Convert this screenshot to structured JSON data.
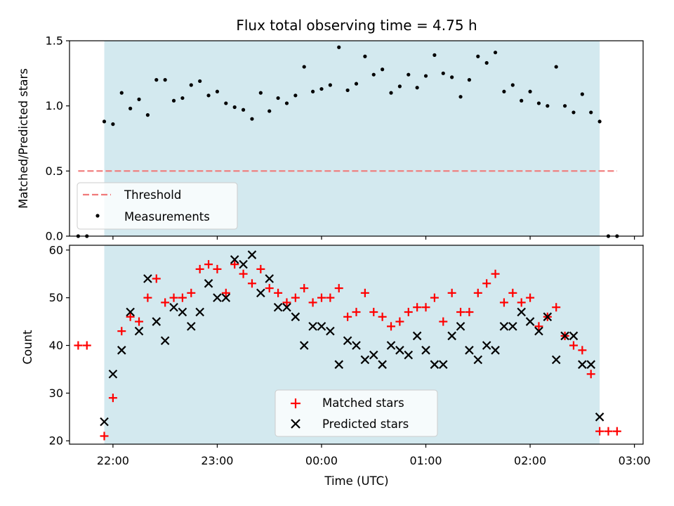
{
  "chart_data": [
    {
      "type": "scatter",
      "title": "Flux total observing time = 4.75 h",
      "ylabel": "Matched/Predicted stars",
      "xlabel": "",
      "ylim": [
        0,
        1.5
      ],
      "yticks": [
        "0.0",
        "0.5",
        "1.0",
        "1.5"
      ],
      "x_domain": [
        "21:35",
        "03:05"
      ],
      "shaded_region": {
        "start": "21:55",
        "end": "02:40",
        "color": "#d3e9ef"
      },
      "threshold": {
        "name": "Threshold",
        "value": 0.5,
        "x_start": "21:40",
        "x_end": "02:50",
        "color": "#f07a7a"
      },
      "series": [
        {
          "name": "Measurements",
          "color": "#000000",
          "points": [
            [
              "21:40",
              0
            ],
            [
              "21:45",
              0
            ],
            [
              "21:55",
              0.88
            ],
            [
              "22:00",
              0.86
            ],
            [
              "22:05",
              1.1
            ],
            [
              "22:10",
              0.98
            ],
            [
              "22:15",
              1.05
            ],
            [
              "22:20",
              0.93
            ],
            [
              "22:25",
              1.2
            ],
            [
              "22:30",
              1.2
            ],
            [
              "22:35",
              1.04
            ],
            [
              "22:40",
              1.06
            ],
            [
              "22:45",
              1.16
            ],
            [
              "22:50",
              1.19
            ],
            [
              "22:55",
              1.08
            ],
            [
              "23:00",
              1.11
            ],
            [
              "23:05",
              1.02
            ],
            [
              "23:10",
              0.99
            ],
            [
              "23:15",
              0.97
            ],
            [
              "23:20",
              0.9
            ],
            [
              "23:25",
              1.1
            ],
            [
              "23:30",
              0.96
            ],
            [
              "23:35",
              1.06
            ],
            [
              "23:40",
              1.02
            ],
            [
              "23:45",
              1.08
            ],
            [
              "23:50",
              1.3
            ],
            [
              "23:55",
              1.11
            ],
            [
              "00:00",
              1.13
            ],
            [
              "00:05",
              1.16
            ],
            [
              "00:10",
              1.45
            ],
            [
              "00:15",
              1.12
            ],
            [
              "00:20",
              1.17
            ],
            [
              "00:25",
              1.38
            ],
            [
              "00:30",
              1.24
            ],
            [
              "00:35",
              1.28
            ],
            [
              "00:40",
              1.1
            ],
            [
              "00:45",
              1.15
            ],
            [
              "00:50",
              1.24
            ],
            [
              "00:55",
              1.14
            ],
            [
              "01:00",
              1.23
            ],
            [
              "01:05",
              1.39
            ],
            [
              "01:10",
              1.25
            ],
            [
              "01:15",
              1.22
            ],
            [
              "01:20",
              1.07
            ],
            [
              "01:25",
              1.2
            ],
            [
              "01:30",
              1.38
            ],
            [
              "01:35",
              1.33
            ],
            [
              "01:40",
              1.41
            ],
            [
              "01:45",
              1.11
            ],
            [
              "01:50",
              1.16
            ],
            [
              "01:55",
              1.04
            ],
            [
              "02:00",
              1.11
            ],
            [
              "02:05",
              1.02
            ],
            [
              "02:10",
              1.0
            ],
            [
              "02:15",
              1.3
            ],
            [
              "02:20",
              1.0
            ],
            [
              "02:25",
              0.95
            ],
            [
              "02:30",
              1.09
            ],
            [
              "02:35",
              0.95
            ],
            [
              "02:40",
              0.88
            ],
            [
              "02:45",
              0
            ],
            [
              "02:50",
              0
            ]
          ]
        }
      ],
      "legend": {
        "position": "lower-left",
        "entries": [
          "Threshold",
          "Measurements"
        ]
      }
    },
    {
      "type": "scatter",
      "title": "",
      "ylabel": "Count",
      "xlabel": "Time (UTC)",
      "ylim": [
        19.3,
        61
      ],
      "yticks": [
        "20",
        "30",
        "40",
        "50",
        "60"
      ],
      "xticks": [
        "22:00",
        "23:00",
        "00:00",
        "01:00",
        "02:00",
        "03:00"
      ],
      "x_domain": [
        "21:35",
        "03:05"
      ],
      "shaded_region": {
        "start": "21:55",
        "end": "02:40",
        "color": "#d3e9ef"
      },
      "series": [
        {
          "name": "Matched stars",
          "marker": "plus",
          "color": "#ff0000",
          "points": [
            [
              "21:40",
              40
            ],
            [
              "21:45",
              40
            ],
            [
              "21:55",
              21
            ],
            [
              "22:00",
              29
            ],
            [
              "22:05",
              43
            ],
            [
              "22:10",
              46
            ],
            [
              "22:15",
              45
            ],
            [
              "22:20",
              50
            ],
            [
              "22:25",
              54
            ],
            [
              "22:30",
              49
            ],
            [
              "22:35",
              50
            ],
            [
              "22:40",
              50
            ],
            [
              "22:45",
              51
            ],
            [
              "22:50",
              56
            ],
            [
              "22:55",
              57
            ],
            [
              "23:00",
              56
            ],
            [
              "23:05",
              51
            ],
            [
              "23:10",
              57
            ],
            [
              "23:15",
              55
            ],
            [
              "23:20",
              53
            ],
            [
              "23:25",
              56
            ],
            [
              "23:30",
              52
            ],
            [
              "23:35",
              51
            ],
            [
              "23:40",
              49
            ],
            [
              "23:45",
              50
            ],
            [
              "23:50",
              52
            ],
            [
              "23:55",
              49
            ],
            [
              "00:00",
              50
            ],
            [
              "00:05",
              50
            ],
            [
              "00:10",
              52
            ],
            [
              "00:15",
              46
            ],
            [
              "00:20",
              47
            ],
            [
              "00:25",
              51
            ],
            [
              "00:30",
              47
            ],
            [
              "00:35",
              46
            ],
            [
              "00:40",
              44
            ],
            [
              "00:45",
              45
            ],
            [
              "00:50",
              47
            ],
            [
              "00:55",
              48
            ],
            [
              "01:00",
              48
            ],
            [
              "01:05",
              50
            ],
            [
              "01:10",
              45
            ],
            [
              "01:15",
              51
            ],
            [
              "01:20",
              47
            ],
            [
              "01:25",
              47
            ],
            [
              "01:30",
              51
            ],
            [
              "01:35",
              53
            ],
            [
              "01:40",
              55
            ],
            [
              "01:45",
              49
            ],
            [
              "01:50",
              51
            ],
            [
              "01:55",
              49
            ],
            [
              "02:00",
              50
            ],
            [
              "02:05",
              44
            ],
            [
              "02:10",
              46
            ],
            [
              "02:15",
              48
            ],
            [
              "02:20",
              42
            ],
            [
              "02:25",
              40
            ],
            [
              "02:30",
              39
            ],
            [
              "02:35",
              34
            ],
            [
              "02:40",
              22
            ],
            [
              "02:45",
              22
            ],
            [
              "02:50",
              22
            ]
          ]
        },
        {
          "name": "Predicted stars",
          "marker": "x",
          "color": "#000000",
          "points": [
            [
              "21:55",
              24
            ],
            [
              "22:00",
              34
            ],
            [
              "22:05",
              39
            ],
            [
              "22:10",
              47
            ],
            [
              "22:15",
              43
            ],
            [
              "22:20",
              54
            ],
            [
              "22:25",
              45
            ],
            [
              "22:30",
              41
            ],
            [
              "22:35",
              48
            ],
            [
              "22:40",
              47
            ],
            [
              "22:45",
              44
            ],
            [
              "22:50",
              47
            ],
            [
              "22:55",
              53
            ],
            [
              "23:00",
              50
            ],
            [
              "23:05",
              50
            ],
            [
              "23:10",
              58
            ],
            [
              "23:15",
              57
            ],
            [
              "23:20",
              59
            ],
            [
              "23:25",
              51
            ],
            [
              "23:30",
              54
            ],
            [
              "23:35",
              48
            ],
            [
              "23:40",
              48
            ],
            [
              "23:45",
              46
            ],
            [
              "23:50",
              40
            ],
            [
              "23:55",
              44
            ],
            [
              "00:00",
              44
            ],
            [
              "00:05",
              43
            ],
            [
              "00:10",
              36
            ],
            [
              "00:15",
              41
            ],
            [
              "00:20",
              40
            ],
            [
              "00:25",
              37
            ],
            [
              "00:30",
              38
            ],
            [
              "00:35",
              36
            ],
            [
              "00:40",
              40
            ],
            [
              "00:45",
              39
            ],
            [
              "00:50",
              38
            ],
            [
              "00:55",
              42
            ],
            [
              "01:00",
              39
            ],
            [
              "01:05",
              36
            ],
            [
              "01:10",
              36
            ],
            [
              "01:15",
              42
            ],
            [
              "01:20",
              44
            ],
            [
              "01:25",
              39
            ],
            [
              "01:30",
              37
            ],
            [
              "01:35",
              40
            ],
            [
              "01:40",
              39
            ],
            [
              "01:45",
              44
            ],
            [
              "01:50",
              44
            ],
            [
              "01:55",
              47
            ],
            [
              "02:00",
              45
            ],
            [
              "02:05",
              43
            ],
            [
              "02:10",
              46
            ],
            [
              "02:15",
              37
            ],
            [
              "02:20",
              42
            ],
            [
              "02:25",
              42
            ],
            [
              "02:30",
              36
            ],
            [
              "02:35",
              36
            ],
            [
              "02:40",
              25
            ]
          ]
        }
      ],
      "legend": {
        "position": "lower-center",
        "entries": [
          "Matched stars",
          "Predicted stars"
        ]
      }
    }
  ]
}
